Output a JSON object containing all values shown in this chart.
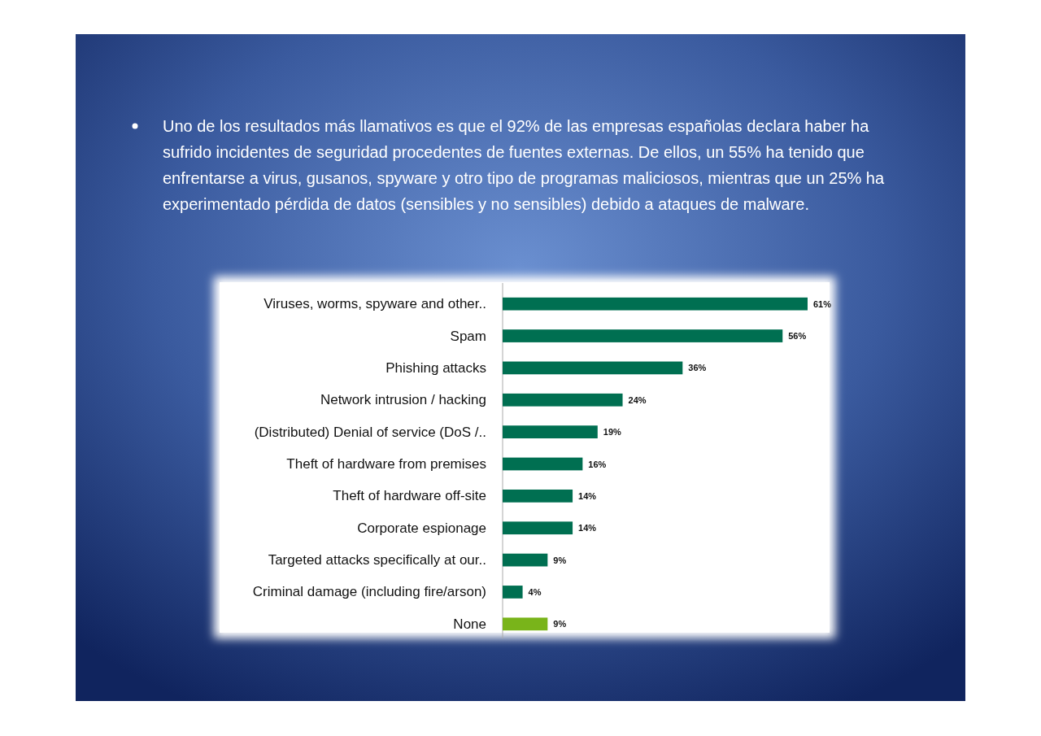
{
  "chart_data": {
    "type": "bar",
    "orientation": "horizontal",
    "title": "Uno de los resultados más llamativos es que el 92% de las empresas españolas declara haber ha sufrido incidentes de seguridad procedentes de fuentes externas. De ellos, un 55% ha tenido que enfrentarse a virus, gusanos, spyware y otro tipo de programas maliciosos, mientras que un 25% ha experimentado pérdida de datos (sensibles y no sensibles) debido a ataques de malware.",
    "categories": [
      "Viruses, worms, spyware and other..",
      "Spam",
      "Phishing attacks",
      "Network intrusion / hacking",
      "(Distributed) Denial of service (DoS /..",
      "Theft of hardware from premises",
      "Theft of hardware off-site",
      "Corporate espionage",
      "Targeted attacks specifically at our..",
      "Criminal damage (including fire/arson)",
      "None"
    ],
    "values": [
      61,
      56,
      36,
      24,
      19,
      16,
      14,
      14,
      9,
      4,
      9
    ],
    "value_labels": [
      "61%",
      "56%",
      "36%",
      "24%",
      "19%",
      "16%",
      "14%",
      "14%",
      "9%",
      "4%",
      "9%"
    ],
    "colors": [
      "#006f51",
      "#006f51",
      "#006f51",
      "#006f51",
      "#006f51",
      "#006f51",
      "#006f51",
      "#006f51",
      "#006f51",
      "#006f51",
      "#79b41a"
    ]
  }
}
